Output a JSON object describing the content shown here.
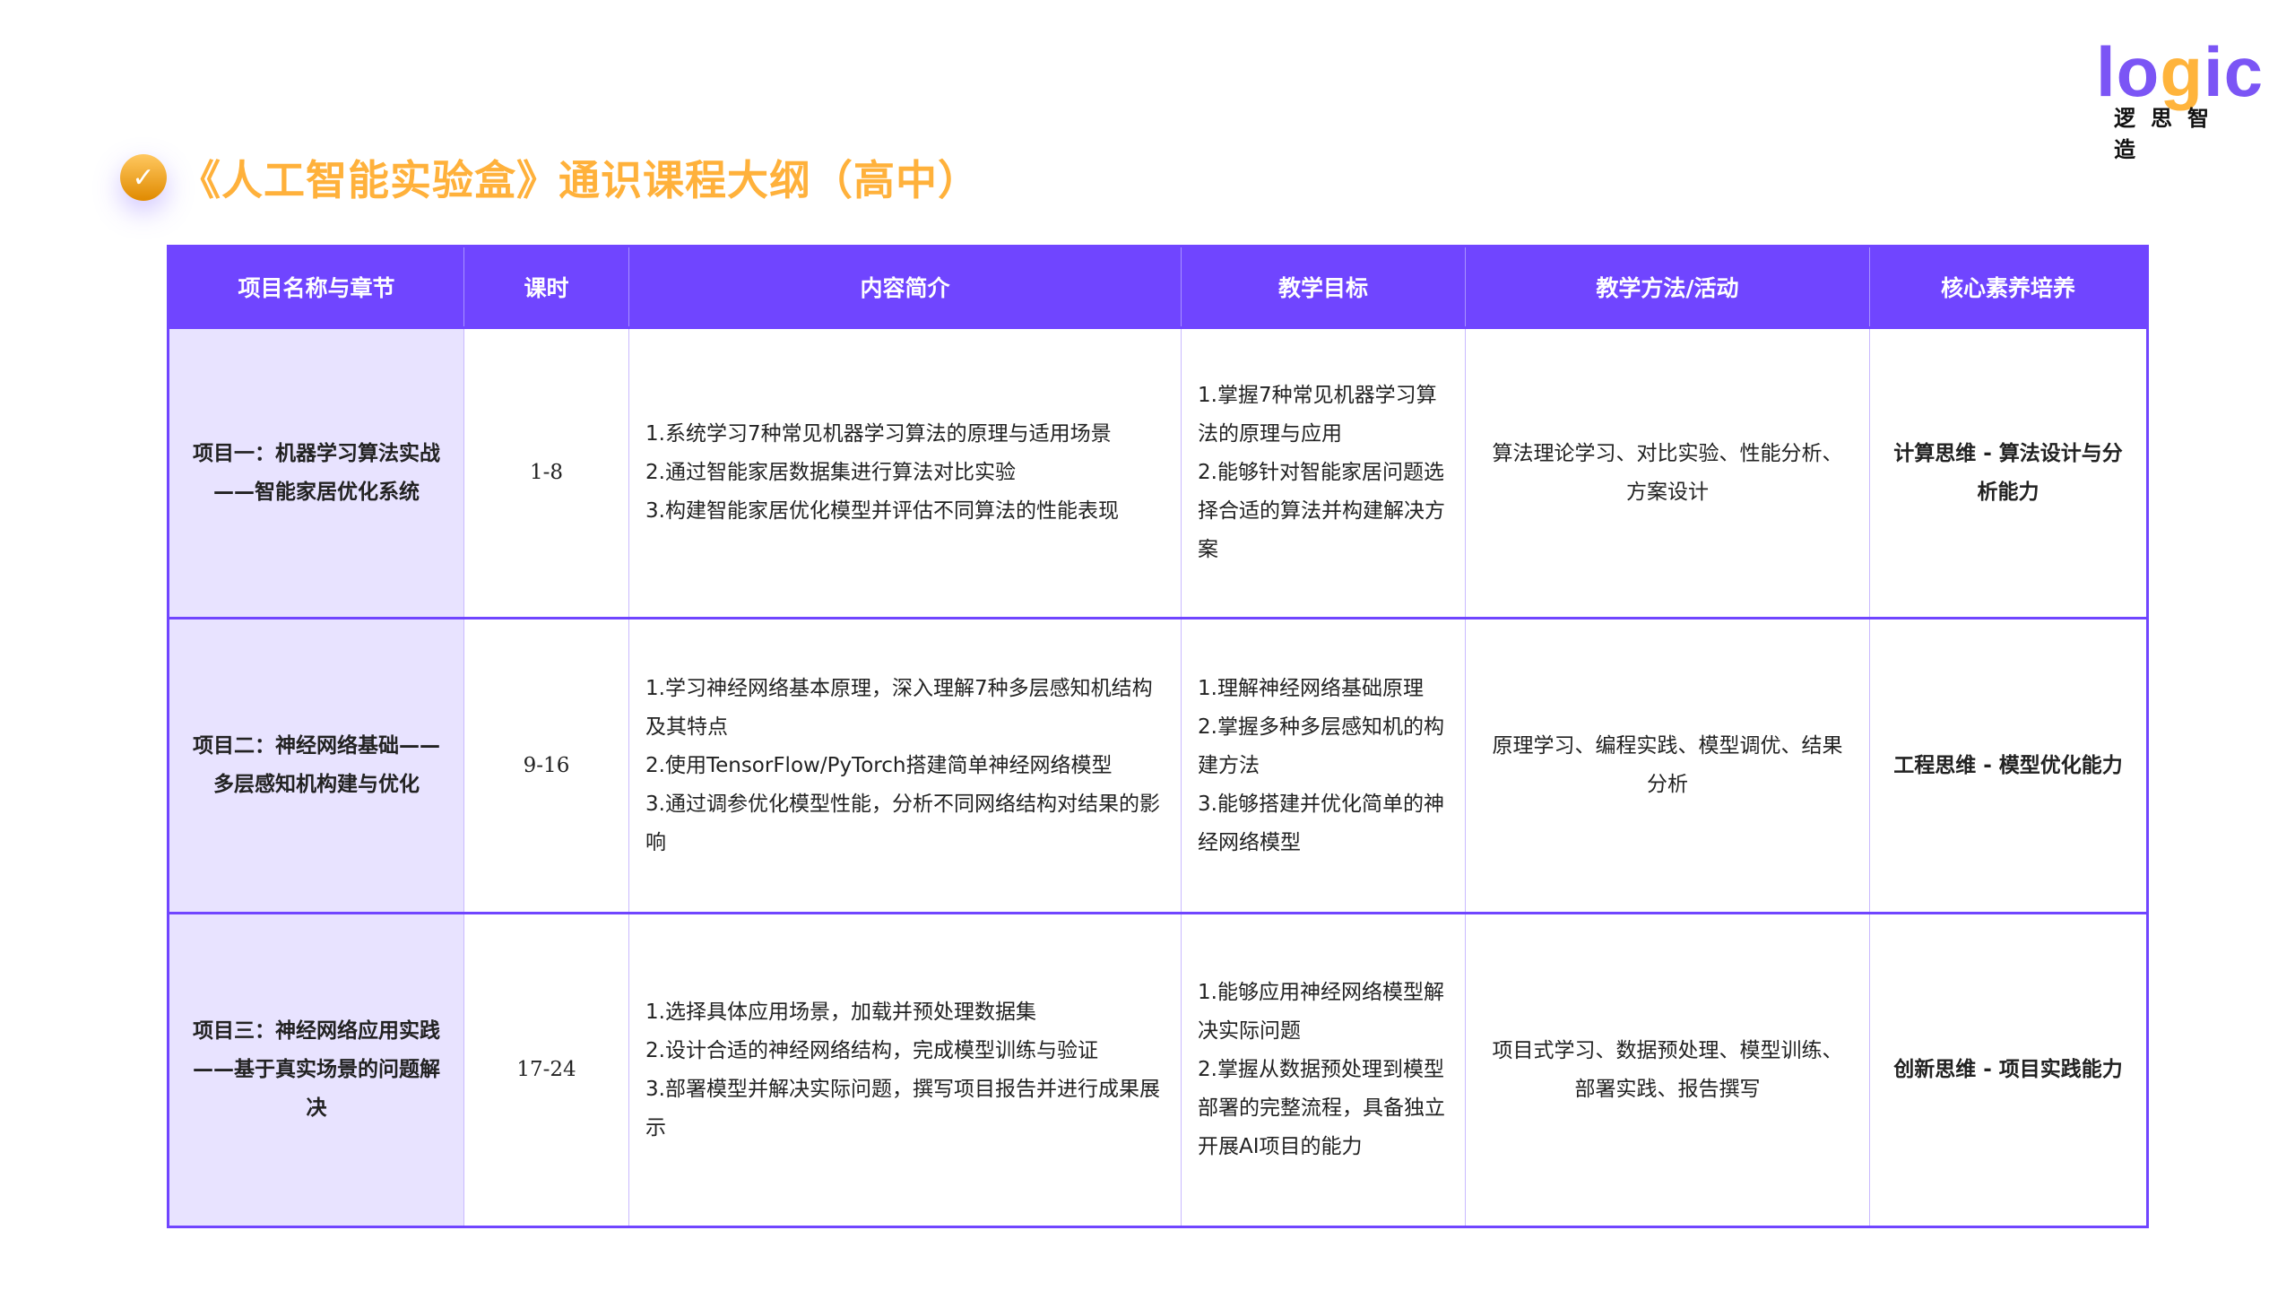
{
  "logo": {
    "text_pre": "lo",
    "text_g": "g",
    "text_post": "ic",
    "subtitle": "逻思智造"
  },
  "header": {
    "title": "《人工智能实验盒》通识课程大纲（高中）",
    "icon": "check-circle-icon"
  },
  "colors": {
    "header_bg": "#7045ff",
    "title": "#ffb13b",
    "first_col_bg": "#e8e3ff"
  },
  "table": {
    "columns": [
      "项目名称与章节",
      "课时",
      "内容简介",
      "教学目标",
      "教学方法/活动",
      "核心素养培养"
    ],
    "rows": [
      {
        "name": "项目一：机器学习算法实战——智能家居优化系统",
        "hours": "1-8",
        "content": [
          "1.系统学习7种常见机器学习算法的原理与适用场景",
          "2.通过智能家居数据集进行算法对比实验",
          "3.构建智能家居优化模型并评估不同算法的性能表现"
        ],
        "goals": [
          "1.掌握7种常见机器学习算法的原理与应用",
          "2.能够针对智能家居问题选择合适的算法并构建解决方案"
        ],
        "methods": "算法理论学习、对比实验、性能分析、方案设计",
        "core": "计算思维 - 算法设计与分析能力"
      },
      {
        "name": "项目二：神经网络基础——多层感知机构建与优化",
        "hours": "9-16",
        "content": [
          "1.学习神经网络基本原理，深入理解7种多层感知机结构及其特点",
          "2.使用TensorFlow/PyTorch搭建简单神经网络模型",
          "3.通过调参优化模型性能，分析不同网络结构对结果的影响"
        ],
        "goals": [
          "1.理解神经网络基础原理",
          "2.掌握多种多层感知机的构建方法",
          "3.能够搭建并优化简单的神经网络模型"
        ],
        "methods": "原理学习、编程实践、模型调优、结果分析",
        "core": "工程思维 - 模型优化能力"
      },
      {
        "name": "项目三：神经网络应用实践——基于真实场景的问题解决",
        "hours": "17-24",
        "content": [
          "1.选择具体应用场景，加载并预处理数据集",
          "2.设计合适的神经网络结构，完成模型训练与验证",
          "3.部署模型并解决实际问题，撰写项目报告并进行成果展示"
        ],
        "goals": [
          "1.能够应用神经网络模型解决实际问题",
          "2.掌握从数据预处理到模型部署的完整流程，具备独立开展AI项目的能力"
        ],
        "methods": "项目式学习、数据预处理、模型训练、部署实践、报告撰写",
        "core": "创新思维 - 项目实践能力"
      }
    ]
  }
}
